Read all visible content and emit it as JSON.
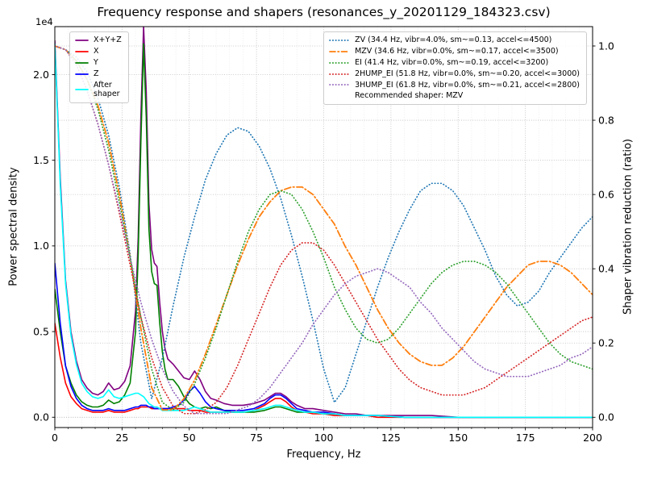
{
  "figure": {
    "title": "Frequency response and shapers (resonances_y_20201129_184323.csv)",
    "xlabel": "Frequency, Hz",
    "ylabel_left": "Power spectral density",
    "ylabel_right": "Shaper vibration reduction (ratio)",
    "offset_text": "1e4"
  },
  "chart_data": {
    "type": "line",
    "title": "Frequency response and shapers (resonances_y_20201129_184323.csv)",
    "x_axis": {
      "label": "Frequency, Hz",
      "range": [
        0,
        200
      ],
      "ticks": [
        0,
        25,
        50,
        75,
        100,
        125,
        150,
        175,
        200
      ],
      "minor_step": 5
    },
    "y_left": {
      "label": "Power spectral density",
      "multiplier": "1e4",
      "range": [
        -0.06,
        2.28
      ],
      "ticks": [
        "0.0",
        "0.5",
        "1.0",
        "1.5",
        "2.0"
      ],
      "tick_values": [
        0,
        0.5,
        1.0,
        1.5,
        2.0
      ]
    },
    "y_right": {
      "label": "Shaper vibration reduction (ratio)",
      "range": [
        0,
        1.05
      ],
      "ticks": [
        "0.0",
        "0.2",
        "0.4",
        "0.6",
        "0.8",
        "1.0"
      ],
      "tick_values": [
        0,
        0.2,
        0.4,
        0.6,
        0.8,
        1.0
      ]
    },
    "grid": true,
    "psd_freq": [
      0,
      2,
      4,
      6,
      8,
      10,
      12,
      14,
      16,
      18,
      20,
      22,
      24,
      26,
      28,
      30,
      31,
      32,
      33,
      34,
      35,
      36,
      37,
      38,
      39,
      40,
      41,
      42,
      44,
      46,
      48,
      50,
      52,
      54,
      56,
      58,
      60,
      63,
      66,
      70,
      74,
      78,
      80,
      82,
      84,
      86,
      88,
      90,
      93,
      96,
      100,
      104,
      108,
      112,
      116,
      120,
      130,
      140,
      150,
      160,
      170,
      180,
      190,
      200
    ],
    "psd_series": [
      {
        "id": "sum",
        "legend_label": "X+Y+Z",
        "color": "#800080",
        "style": "solid",
        "values": [
          2.2,
          1.4,
          0.8,
          0.5,
          0.33,
          0.22,
          0.17,
          0.14,
          0.13,
          0.15,
          0.2,
          0.16,
          0.17,
          0.21,
          0.3,
          0.62,
          1.05,
          1.75,
          2.28,
          1.9,
          1.25,
          0.98,
          0.9,
          0.88,
          0.67,
          0.5,
          0.4,
          0.34,
          0.31,
          0.27,
          0.23,
          0.22,
          0.27,
          0.22,
          0.15,
          0.11,
          0.1,
          0.08,
          0.07,
          0.07,
          0.08,
          0.1,
          0.12,
          0.14,
          0.14,
          0.12,
          0.09,
          0.07,
          0.05,
          0.05,
          0.04,
          0.03,
          0.02,
          0.02,
          0.01,
          0.01,
          0.01,
          0.01,
          0,
          0,
          0,
          0,
          0,
          0
        ]
      },
      {
        "id": "x",
        "legend_label": "X",
        "color": "#ff0000",
        "style": "solid",
        "values": [
          0.55,
          0.35,
          0.2,
          0.12,
          0.08,
          0.05,
          0.04,
          0.03,
          0.03,
          0.03,
          0.04,
          0.03,
          0.03,
          0.03,
          0.04,
          0.05,
          0.05,
          0.06,
          0.06,
          0.06,
          0.06,
          0.05,
          0.05,
          0.05,
          0.05,
          0.05,
          0.05,
          0.05,
          0.05,
          0.05,
          0.05,
          0.04,
          0.04,
          0.04,
          0.03,
          0.03,
          0.03,
          0.03,
          0.03,
          0.03,
          0.04,
          0.07,
          0.09,
          0.11,
          0.11,
          0.09,
          0.06,
          0.04,
          0.03,
          0.02,
          0.02,
          0.01,
          0.01,
          0.01,
          0.01,
          0,
          0,
          0,
          0,
          0,
          0,
          0,
          0,
          0
        ]
      },
      {
        "id": "y",
        "legend_label": "Y",
        "color": "#008000",
        "style": "solid",
        "values": [
          0.75,
          0.5,
          0.3,
          0.2,
          0.13,
          0.09,
          0.07,
          0.06,
          0.06,
          0.07,
          0.1,
          0.08,
          0.09,
          0.13,
          0.2,
          0.5,
          0.95,
          1.6,
          2.18,
          1.75,
          1.1,
          0.85,
          0.78,
          0.77,
          0.55,
          0.38,
          0.28,
          0.22,
          0.22,
          0.18,
          0.12,
          0.08,
          0.06,
          0.05,
          0.06,
          0.05,
          0.06,
          0.04,
          0.03,
          0.03,
          0.03,
          0.04,
          0.05,
          0.06,
          0.06,
          0.05,
          0.04,
          0.03,
          0.03,
          0.03,
          0.02,
          0.02,
          0.01,
          0.01,
          0.01,
          0.01,
          0,
          0,
          0,
          0,
          0,
          0,
          0,
          0
        ]
      },
      {
        "id": "z",
        "legend_label": "Z",
        "color": "#0000ff",
        "style": "solid",
        "values": [
          0.9,
          0.55,
          0.3,
          0.18,
          0.11,
          0.07,
          0.05,
          0.04,
          0.04,
          0.04,
          0.05,
          0.04,
          0.04,
          0.04,
          0.05,
          0.06,
          0.06,
          0.07,
          0.07,
          0.07,
          0.06,
          0.06,
          0.05,
          0.05,
          0.05,
          0.05,
          0.05,
          0.05,
          0.06,
          0.07,
          0.1,
          0.15,
          0.18,
          0.14,
          0.09,
          0.06,
          0.05,
          0.04,
          0.04,
          0.04,
          0.05,
          0.08,
          0.11,
          0.13,
          0.13,
          0.11,
          0.08,
          0.05,
          0.04,
          0.03,
          0.03,
          0.02,
          0.01,
          0.01,
          0.01,
          0.01,
          0,
          0,
          0,
          0,
          0,
          0,
          0,
          0
        ]
      },
      {
        "id": "after-shaper",
        "legend_label": "After\nshaper",
        "color": "#00ffff",
        "style": "solid",
        "values": [
          2.18,
          1.36,
          0.78,
          0.48,
          0.31,
          0.2,
          0.15,
          0.12,
          0.11,
          0.12,
          0.16,
          0.12,
          0.11,
          0.12,
          0.13,
          0.14,
          0.14,
          0.13,
          0.12,
          0.1,
          0.08,
          0.07,
          0.06,
          0.06,
          0.05,
          0.04,
          0.04,
          0.04,
          0.04,
          0.04,
          0.04,
          0.05,
          0.06,
          0.05,
          0.04,
          0.03,
          0.03,
          0.03,
          0.03,
          0.03,
          0.04,
          0.05,
          0.06,
          0.07,
          0.07,
          0.06,
          0.05,
          0.04,
          0.03,
          0.03,
          0.02,
          0.02,
          0.01,
          0.01,
          0.01,
          0.01,
          0,
          0,
          0,
          0,
          0,
          0,
          0,
          0
        ]
      }
    ],
    "shaper_freq": [
      0,
      4,
      8,
      12,
      16,
      20,
      24,
      28,
      32,
      36,
      40,
      44,
      48,
      52,
      56,
      60,
      64,
      68,
      72,
      76,
      80,
      84,
      88,
      92,
      96,
      100,
      104,
      108,
      112,
      116,
      120,
      124,
      128,
      132,
      136,
      140,
      144,
      148,
      152,
      156,
      160,
      164,
      168,
      172,
      176,
      180,
      184,
      188,
      192,
      196,
      200
    ],
    "shaper_series": [
      {
        "id": "zv",
        "name": "ZV",
        "label": "ZV (34.4 Hz, vibr=4.0%, sm~=0.13, accel<=4500)",
        "color": "#1f77b4",
        "style": "dotted",
        "values": [
          1,
          0.99,
          0.97,
          0.93,
          0.86,
          0.76,
          0.62,
          0.44,
          0.2,
          0.05,
          0.16,
          0.3,
          0.43,
          0.54,
          0.64,
          0.71,
          0.76,
          0.78,
          0.77,
          0.73,
          0.67,
          0.59,
          0.49,
          0.38,
          0.26,
          0.13,
          0.04,
          0.08,
          0.17,
          0.26,
          0.35,
          0.43,
          0.5,
          0.56,
          0.61,
          0.63,
          0.63,
          0.61,
          0.57,
          0.51,
          0.45,
          0.38,
          0.33,
          0.3,
          0.31,
          0.34,
          0.39,
          0.43,
          0.47,
          0.51,
          0.54
        ]
      },
      {
        "id": "mzv",
        "name": "MZV",
        "label": "MZV (34.6 Hz, vibr=0.0%, sm~=0.17, accel<=3500)",
        "color": "#ff7f0e",
        "style": "dashdot",
        "values": [
          1,
          0.99,
          0.96,
          0.91,
          0.84,
          0.74,
          0.6,
          0.43,
          0.24,
          0.08,
          0.02,
          0.02,
          0.05,
          0.1,
          0.17,
          0.25,
          0.33,
          0.41,
          0.48,
          0.54,
          0.58,
          0.61,
          0.62,
          0.62,
          0.6,
          0.56,
          0.52,
          0.46,
          0.41,
          0.35,
          0.29,
          0.24,
          0.2,
          0.17,
          0.15,
          0.14,
          0.14,
          0.16,
          0.19,
          0.23,
          0.27,
          0.31,
          0.35,
          0.38,
          0.41,
          0.42,
          0.42,
          0.41,
          0.39,
          0.36,
          0.33
        ]
      },
      {
        "id": "ei",
        "name": "EI",
        "label": "EI (41.4 Hz, vibr=0.0%, sm~=0.19, accel<=3200)",
        "color": "#2ca02c",
        "style": "dotted",
        "values": [
          1,
          0.99,
          0.96,
          0.91,
          0.83,
          0.72,
          0.58,
          0.43,
          0.27,
          0.13,
          0.04,
          0.02,
          0.04,
          0.09,
          0.16,
          0.24,
          0.33,
          0.42,
          0.5,
          0.56,
          0.6,
          0.61,
          0.6,
          0.56,
          0.5,
          0.43,
          0.35,
          0.29,
          0.24,
          0.21,
          0.2,
          0.21,
          0.24,
          0.28,
          0.32,
          0.36,
          0.39,
          0.41,
          0.42,
          0.42,
          0.41,
          0.39,
          0.36,
          0.32,
          0.28,
          0.24,
          0.2,
          0.17,
          0.15,
          0.14,
          0.13
        ]
      },
      {
        "id": "2hump-ei",
        "name": "2HUMP_EI",
        "label": "2HUMP_EI (51.8 Hz, vibr=0.0%, sm~=0.20, accel<=3000)",
        "color": "#d62728",
        "style": "dotted",
        "values": [
          1,
          0.99,
          0.95,
          0.88,
          0.79,
          0.68,
          0.55,
          0.41,
          0.27,
          0.16,
          0.08,
          0.03,
          0.01,
          0.01,
          0.02,
          0.04,
          0.08,
          0.14,
          0.21,
          0.28,
          0.35,
          0.41,
          0.45,
          0.47,
          0.47,
          0.45,
          0.41,
          0.36,
          0.31,
          0.26,
          0.21,
          0.17,
          0.13,
          0.1,
          0.08,
          0.07,
          0.06,
          0.06,
          0.06,
          0.07,
          0.08,
          0.1,
          0.12,
          0.14,
          0.16,
          0.18,
          0.2,
          0.22,
          0.24,
          0.26,
          0.27
        ]
      },
      {
        "id": "3hump-ei",
        "name": "3HUMP_EI",
        "label": "3HUMP_EI (61.8 Hz, vibr=0.0%, sm~=0.21, accel<=2800)",
        "color": "#9467bd",
        "style": "dotted",
        "values": [
          1,
          0.99,
          0.95,
          0.88,
          0.79,
          0.68,
          0.56,
          0.43,
          0.31,
          0.21,
          0.13,
          0.07,
          0.03,
          0.01,
          0.01,
          0.01,
          0.01,
          0.02,
          0.03,
          0.05,
          0.08,
          0.12,
          0.16,
          0.2,
          0.25,
          0.29,
          0.33,
          0.36,
          0.38,
          0.39,
          0.4,
          0.39,
          0.37,
          0.35,
          0.31,
          0.28,
          0.24,
          0.21,
          0.18,
          0.15,
          0.13,
          0.12,
          0.11,
          0.11,
          0.11,
          0.12,
          0.13,
          0.14,
          0.16,
          0.17,
          0.19
        ]
      }
    ],
    "recommendation": "Recommended shaper: MZV",
    "legend_left_position": "upper left",
    "legend_right_position": "upper right"
  }
}
